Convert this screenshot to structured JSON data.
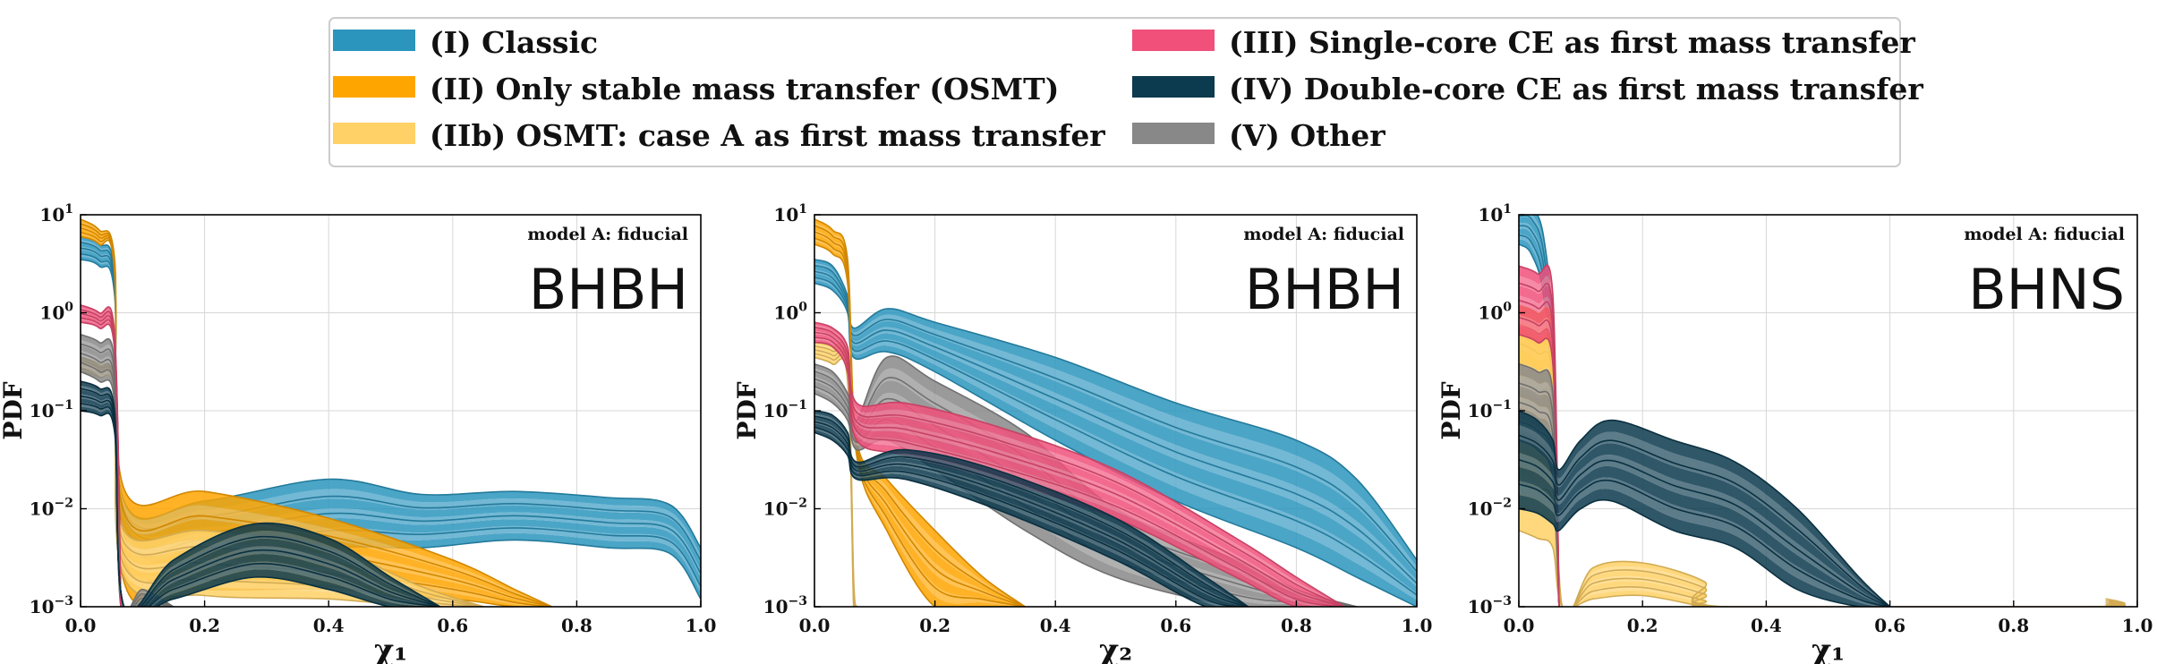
{
  "legend": {
    "items": [
      {
        "label": "(I) Classic",
        "color": "#2b95bd"
      },
      {
        "label": "(II) Only stable mass transfer (OSMT)",
        "color": "#ffa500"
      },
      {
        "label": "(IIb) OSMT: case A as first mass transfer",
        "color": "#ffd166"
      },
      {
        "label": "(III) Single-core CE as first mass transfer",
        "color": "#f0507a"
      },
      {
        "label": "(IV) Double-core CE as first mass transfer",
        "color": "#0c3a4e"
      },
      {
        "label": "(V) Other",
        "color": "#888888"
      }
    ]
  },
  "chart_data": [
    {
      "type": "area",
      "subtitle": "model A: fiducial",
      "label": "BHBH",
      "xlabel": "χ₁",
      "ylabel": "PDF",
      "xlim": [
        0,
        1
      ],
      "ylim": [
        0.001,
        10
      ],
      "yscale": "log",
      "grid": true,
      "xticks": [
        "0.0",
        "0.2",
        "0.4",
        "0.6",
        "0.8",
        "1.0"
      ],
      "series": [
        {
          "name": "(I) Classic",
          "color": "#2b95bd",
          "x": [
            0,
            0.03,
            0.055,
            0.07,
            0.2,
            0.4,
            0.55,
            0.7,
            0.85,
            0.95,
            1.0
          ],
          "low": [
            3.5,
            3.0,
            1.5,
            0.006,
            0.0028,
            0.004,
            0.004,
            0.0048,
            0.004,
            0.0035,
            0.0012
          ],
          "high": [
            6.0,
            5.0,
            2.5,
            0.012,
            0.012,
            0.02,
            0.014,
            0.015,
            0.013,
            0.011,
            0.004
          ]
        },
        {
          "name": "(II) Only stable mass transfer (OSMT)",
          "color": "#ffa500",
          "x": [
            0,
            0.03,
            0.055,
            0.07,
            0.2,
            0.4,
            0.6,
            0.7,
            0.76
          ],
          "low": [
            6.0,
            5.0,
            2.5,
            0.0018,
            0.0015,
            0.0015,
            0.0012,
            0.001,
            0.001
          ],
          "high": [
            9.0,
            7.0,
            3.5,
            0.016,
            0.015,
            0.008,
            0.003,
            0.0015,
            0.001
          ]
        },
        {
          "name": "(IIb) OSMT: case A as first mass transfer",
          "color": "#ffd166",
          "x": [
            0,
            0.03,
            0.055,
            0.07,
            0.2,
            0.4,
            0.55,
            0.65
          ],
          "low": [
            0.25,
            0.22,
            0.15,
            0.002,
            0.0013,
            0.0012,
            0.001,
            0.001
          ],
          "high": [
            0.35,
            0.3,
            0.2,
            0.006,
            0.006,
            0.004,
            0.0016,
            0.001
          ]
        },
        {
          "name": "(III) Single-core CE as first mass transfer",
          "color": "#f0507a",
          "x": [
            0,
            0.03,
            0.055,
            0.065
          ],
          "low": [
            0.8,
            0.7,
            0.4,
            0.001
          ],
          "high": [
            1.2,
            1.0,
            0.6,
            0.001
          ]
        },
        {
          "name": "(IV) Double-core CE as first mass transfer",
          "color": "#0c3a4e",
          "x": [
            0,
            0.03,
            0.055,
            0.07,
            0.15,
            0.28,
            0.4,
            0.5,
            0.58
          ],
          "low": [
            0.1,
            0.09,
            0.06,
            0.001,
            0.0012,
            0.002,
            0.0015,
            0.001,
            0.001
          ],
          "high": [
            0.2,
            0.17,
            0.1,
            0.001,
            0.003,
            0.007,
            0.005,
            0.002,
            0.001
          ]
        },
        {
          "name": "(V) Other",
          "color": "#888888",
          "x": [
            0,
            0.03,
            0.055,
            0.065,
            0.1,
            0.15
          ],
          "low": [
            0.25,
            0.2,
            0.12,
            0.001,
            0.001,
            0.001
          ],
          "high": [
            0.6,
            0.5,
            0.3,
            0.0012,
            0.0015,
            0.001
          ]
        }
      ]
    },
    {
      "type": "area",
      "subtitle": "model A: fiducial",
      "label": "BHBH",
      "xlabel": "χ₂",
      "ylabel": "PDF",
      "xlim": [
        0,
        1
      ],
      "ylim": [
        0.001,
        10
      ],
      "yscale": "log",
      "grid": true,
      "xticks": [
        "0.0",
        "0.2",
        "0.4",
        "0.6",
        "0.8",
        "1.0"
      ],
      "series": [
        {
          "name": "(I) Classic",
          "color": "#2b95bd",
          "x": [
            0,
            0.03,
            0.055,
            0.065,
            0.12,
            0.2,
            0.4,
            0.6,
            0.8,
            0.9,
            1.0
          ],
          "low": [
            2.0,
            1.7,
            1.0,
            0.35,
            0.4,
            0.25,
            0.05,
            0.012,
            0.004,
            0.002,
            0.001
          ],
          "high": [
            3.5,
            3.0,
            1.5,
            0.7,
            1.1,
            0.8,
            0.35,
            0.12,
            0.05,
            0.02,
            0.003
          ]
        },
        {
          "name": "(II) Only stable mass transfer (OSMT)",
          "color": "#ffa500",
          "x": [
            0,
            0.03,
            0.055,
            0.07,
            0.12,
            0.2,
            0.28,
            0.35
          ],
          "low": [
            5.0,
            4.0,
            2.0,
            0.035,
            0.006,
            0.001,
            0.001,
            0.001
          ],
          "high": [
            9.0,
            7.0,
            3.5,
            0.05,
            0.02,
            0.006,
            0.002,
            0.001
          ]
        },
        {
          "name": "(IIb) OSMT: case A as first mass transfer",
          "color": "#ffd166",
          "x": [
            0,
            0.03,
            0.055,
            0.065,
            0.07
          ],
          "low": [
            0.35,
            0.3,
            0.2,
            0.001,
            0.001
          ],
          "high": [
            0.5,
            0.45,
            0.3,
            0.002,
            0.001
          ]
        },
        {
          "name": "(III) Single-core CE as first mass transfer",
          "color": "#f0507a",
          "x": [
            0,
            0.03,
            0.055,
            0.07,
            0.15,
            0.3,
            0.5,
            0.7,
            0.8,
            0.88
          ],
          "low": [
            0.5,
            0.45,
            0.25,
            0.05,
            0.035,
            0.02,
            0.008,
            0.002,
            0.001,
            0.001
          ],
          "high": [
            0.8,
            0.7,
            0.45,
            0.12,
            0.12,
            0.07,
            0.025,
            0.005,
            0.002,
            0.001
          ]
        },
        {
          "name": "(IV) Double-core CE as first mass transfer",
          "color": "#0c3a4e",
          "x": [
            0,
            0.03,
            0.055,
            0.07,
            0.15,
            0.3,
            0.5,
            0.65,
            0.72
          ],
          "low": [
            0.06,
            0.05,
            0.035,
            0.02,
            0.02,
            0.01,
            0.003,
            0.001,
            0.001
          ],
          "high": [
            0.1,
            0.09,
            0.06,
            0.03,
            0.04,
            0.025,
            0.008,
            0.002,
            0.001
          ]
        },
        {
          "name": "(V) Other",
          "color": "#888888",
          "x": [
            0,
            0.03,
            0.055,
            0.07,
            0.12,
            0.2,
            0.35,
            0.5,
            0.7,
            0.8,
            0.9
          ],
          "low": [
            0.15,
            0.12,
            0.08,
            0.04,
            0.05,
            0.025,
            0.006,
            0.002,
            0.001,
            0.001,
            0.001
          ],
          "high": [
            0.3,
            0.25,
            0.15,
            0.08,
            0.35,
            0.2,
            0.06,
            0.01,
            0.003,
            0.0015,
            0.001
          ]
        }
      ]
    },
    {
      "type": "area",
      "subtitle": "model A: fiducial",
      "label": "BHNS",
      "xlabel": "χ₁",
      "ylabel": "PDF",
      "xlim": [
        0,
        1
      ],
      "ylim": [
        0.001,
        10
      ],
      "yscale": "log",
      "grid": true,
      "xticks": [
        "0.0",
        "0.2",
        "0.4",
        "0.6",
        "0.8",
        "1.0"
      ],
      "series": [
        {
          "name": "(I) Classic",
          "color": "#2b95bd",
          "x": [
            0,
            0.02,
            0.04,
            0.055,
            0.065
          ],
          "low": [
            5.0,
            4.0,
            1.5,
            0.1,
            0.001
          ],
          "high": [
            12.0,
            12.0,
            6.0,
            0.5,
            0.001
          ]
        },
        {
          "name": "(II) Only stable mass transfer (OSMT)",
          "color": "#ffa500",
          "x": [
            0,
            0.03,
            0.055,
            0.065
          ],
          "low": [
            0.2,
            0.15,
            0.08,
            0.001
          ],
          "high": [
            1.2,
            1.0,
            0.6,
            0.001
          ]
        },
        {
          "name": "(IIb) OSMT: case A as first mass transfer",
          "color": "#ffd166",
          "x": [
            0,
            0.03,
            0.055,
            0.07,
            0.12,
            0.2,
            0.3,
            0.33,
            0.93,
            0.95,
            0.97
          ],
          "low": [
            0.006,
            0.005,
            0.004,
            0.001,
            0.0012,
            0.0013,
            0.001,
            0.001,
            0.001,
            0.001,
            0.001
          ],
          "high": [
            0.6,
            0.5,
            0.3,
            0.001,
            0.0025,
            0.0028,
            0.0018,
            0.001,
            0.001,
            0.0012,
            0.001
          ]
        },
        {
          "name": "(III) Single-core CE as first mass transfer",
          "color": "#f0507a",
          "x": [
            0,
            0.03,
            0.055,
            0.065
          ],
          "low": [
            0.6,
            0.5,
            0.3,
            0.001
          ],
          "high": [
            3.0,
            2.5,
            1.5,
            0.001
          ]
        },
        {
          "name": "(IV) Double-core CE as first mass transfer",
          "color": "#0c3a4e",
          "x": [
            0,
            0.03,
            0.055,
            0.065,
            0.1,
            0.15,
            0.25,
            0.35,
            0.45,
            0.55,
            0.6
          ],
          "low": [
            0.01,
            0.009,
            0.007,
            0.006,
            0.01,
            0.012,
            0.006,
            0.004,
            0.0015,
            0.001,
            0.001
          ],
          "high": [
            0.1,
            0.08,
            0.05,
            0.025,
            0.05,
            0.08,
            0.05,
            0.03,
            0.01,
            0.002,
            0.001
          ]
        },
        {
          "name": "(V) Other",
          "color": "#888888",
          "x": [
            0,
            0.03,
            0.055,
            0.065
          ],
          "low": [
            0.05,
            0.04,
            0.02,
            0.001
          ],
          "high": [
            0.3,
            0.25,
            0.15,
            0.001
          ]
        }
      ]
    }
  ]
}
